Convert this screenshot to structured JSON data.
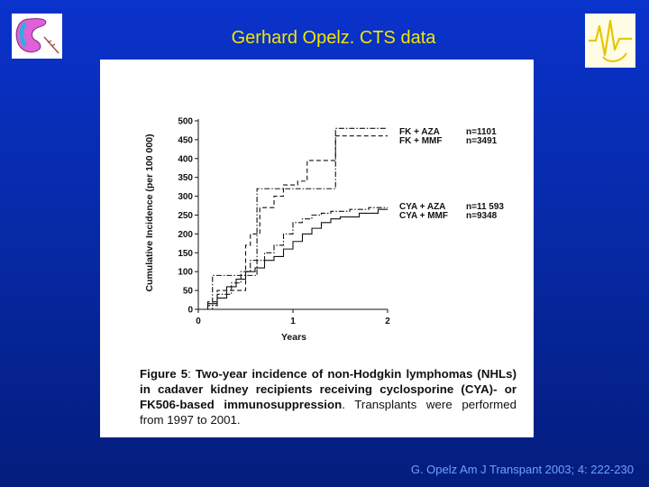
{
  "slide": {
    "title": "Gerhard Opelz. CTS data",
    "citation": "G. Opelz Am J Transpant 2003; 4: 222-230",
    "logo_left": "kidney-logo-icon",
    "logo_right": "signal-logo-icon"
  },
  "caption": {
    "lead": "Figure 5",
    "sep": ": ",
    "bold": "Two-year incidence of non-Hodgkin lymphomas (NHLs) in cadaver kidney recipients receiving cyclosporine (CYA)- or FK506-based immunosuppression",
    "rest": ". Transplants were performed from 1997 to 2001."
  },
  "chart_data": {
    "type": "line",
    "step": true,
    "xlabel": "Years",
    "ylabel": "Cumulative Incidence (per 100 000)",
    "xlim": [
      0,
      2
    ],
    "ylim": [
      0,
      500
    ],
    "x_ticks": [
      "0",
      "1",
      "2"
    ],
    "y_ticks": [
      "0",
      "50",
      "100",
      "150",
      "200",
      "250",
      "300",
      "350",
      "400",
      "450",
      "500"
    ],
    "series": [
      {
        "name": "FK + AZA",
        "n": "n=1101",
        "style": "dash-dot",
        "x": [
          0,
          0.15,
          0.62,
          1.45,
          2.0
        ],
        "y": [
          0,
          90,
          320,
          480,
          480
        ]
      },
      {
        "name": "FK + MMF",
        "n": "n=3491",
        "style": "dash",
        "x": [
          0,
          0.1,
          0.2,
          0.5,
          0.55,
          0.65,
          0.8,
          0.9,
          1.05,
          1.15,
          1.45,
          2.0
        ],
        "y": [
          0,
          20,
          50,
          170,
          200,
          270,
          300,
          330,
          340,
          395,
          460,
          460
        ]
      },
      {
        "name": "CYA + AZA",
        "n": "n=11 593",
        "style": "dash-dot",
        "x": [
          0,
          0.1,
          0.2,
          0.35,
          0.45,
          0.55,
          0.7,
          0.8,
          0.9,
          1.0,
          1.1,
          1.2,
          1.3,
          1.4,
          1.6,
          1.8,
          2.0
        ],
        "y": [
          0,
          10,
          40,
          70,
          100,
          130,
          150,
          170,
          200,
          230,
          240,
          250,
          255,
          260,
          265,
          270,
          270
        ]
      },
      {
        "name": "CYA + MMF",
        "n": "n=9348",
        "style": "solid",
        "x": [
          0,
          0.1,
          0.2,
          0.3,
          0.4,
          0.5,
          0.6,
          0.7,
          0.8,
          0.9,
          1.0,
          1.1,
          1.2,
          1.3,
          1.4,
          1.5,
          1.7,
          1.9,
          2.0
        ],
        "y": [
          0,
          15,
          30,
          60,
          80,
          100,
          110,
          130,
          140,
          160,
          180,
          200,
          215,
          230,
          240,
          245,
          255,
          265,
          265
        ]
      }
    ]
  }
}
